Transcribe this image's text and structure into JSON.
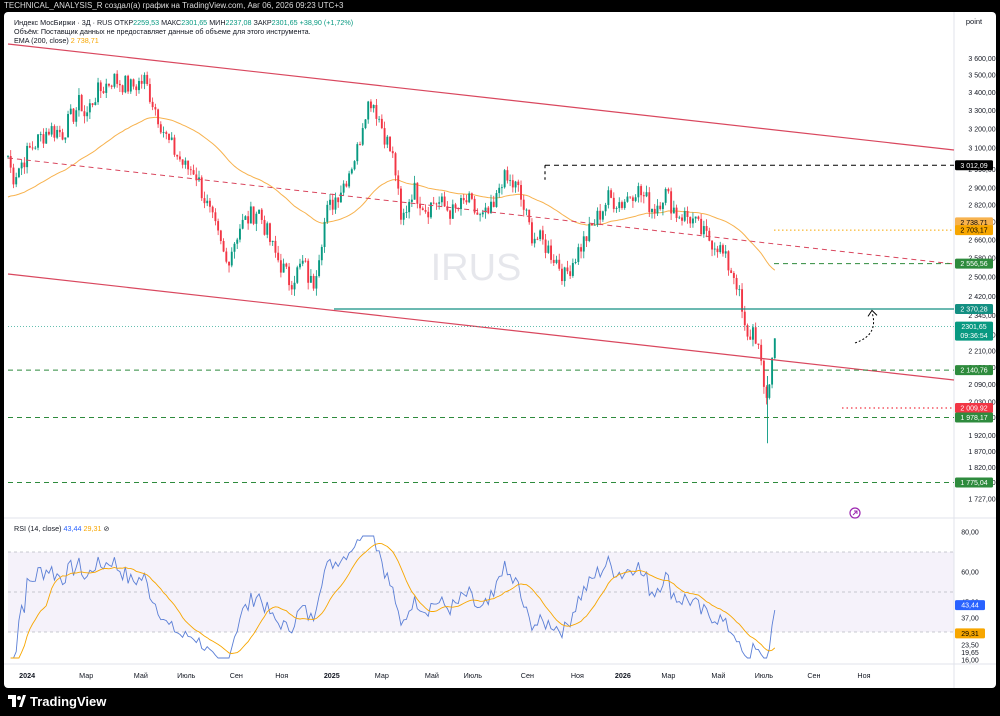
{
  "caption": "TECHNICAL_ANALYSIS_R создал(а) график на TradingView.com, Авг 06, 2026 09:23 UTC+3",
  "brand": "TradingView",
  "watermark": "IRUS",
  "scale_label": "point",
  "legend": {
    "symbol": "Индекс МосБиржи · 3Д · RUS",
    "o_label": "ОТКР",
    "o": "2259,53",
    "h_label": "МАКС",
    "h": "2301,65",
    "l_label": "МИН",
    "l": "2237,08",
    "c_label": "ЗАКР",
    "c": "2301,65",
    "change": "+38,90 (+1,72%)",
    "volume_note": "Объём: Поставщик данных не предоставляет данные об объеме для этого инструмента.",
    "ema_label": "EMA (200, close)",
    "ema_value": "2 738,71",
    "rsi_label": "RSI (14, close)",
    "rsi_value": "43,44",
    "rsi_ma_value": "29,31"
  },
  "colors": {
    "up": "#089981",
    "down": "#f23645",
    "ema": "#f7b24e",
    "rsi": "#5b7fd6",
    "rsi_ma": "#f7a600",
    "channel": "#d9475e",
    "teal": "#138f82",
    "green_dash": "#2e8b3d",
    "black": "#000000"
  },
  "chart_data": [
    {
      "type": "candlestick",
      "title": "Индекс МосБиржи · 3Д · RUS",
      "x_ticks": [
        "2024",
        "Мар",
        "Май",
        "Июль",
        "Сен",
        "Ноя",
        "2025",
        "Мар",
        "Май",
        "Июль",
        "Сен",
        "Ноя",
        "2026",
        "Мар",
        "Май",
        "Июль",
        "Сен",
        "Ноя"
      ],
      "y_ticks": [
        3600,
        3500,
        3400,
        3300,
        3200,
        3100,
        2990,
        2900,
        2820,
        2740,
        2660,
        2580,
        2500,
        2420,
        2345,
        2270,
        2210,
        2150,
        2090,
        2030,
        1978,
        1920,
        1870,
        1820,
        1775,
        1727
      ],
      "y_tick_labels": [
        "3 600,00",
        "3 500,00",
        "3 400,00",
        "3 300,00",
        "3 200,00",
        "3 100,00",
        "2 990,00",
        "2 900,00",
        "2 820,00",
        "2 740,00",
        "2 660,00",
        "2 580,00",
        "2 500,00",
        "2 420,00",
        "2 345,00",
        "2 270,00",
        "2 210,00",
        "2 150,00",
        "2 090,00",
        "2 030,00",
        "1 978,00",
        "1 920,00",
        "1 870,00",
        "1 820,00",
        "1 775,00",
        "1 727,00"
      ],
      "ylim": [
        1690,
        3650
      ],
      "y_scale": "log",
      "path_x_day": [
        0,
        5,
        25,
        45,
        60,
        80,
        85,
        95,
        115,
        135,
        150,
        175,
        195,
        205,
        220,
        240,
        255,
        275,
        292,
        310,
        325,
        330,
        335,
        350,
        370,
        385,
        392,
        400,
        412,
        425,
        432,
        445,
        460,
        470,
        490,
        505,
        520,
        535,
        542,
        560,
        575,
        590,
        605,
        612,
        625,
        640,
        660,
        675,
        690,
        710,
        722,
        735,
        750,
        765,
        780,
        790,
        800,
        807,
        812,
        820,
        826,
        830,
        835,
        840,
        845
      ],
      "path_close": [
        3060,
        2950,
        3100,
        3200,
        3180,
        3350,
        3260,
        3380,
        3480,
        3430,
        3470,
        3140,
        3000,
        2990,
        2800,
        2560,
        2720,
        2800,
        2610,
        2480,
        2560,
        2500,
        2460,
        2780,
        2930,
        3100,
        3300,
        3370,
        3200,
        3020,
        2730,
        2900,
        2800,
        2840,
        2780,
        2840,
        2750,
        2800,
        2950,
        2900,
        2690,
        2640,
        2560,
        2500,
        2600,
        2700,
        2850,
        2830,
        2900,
        2800,
        2880,
        2780,
        2760,
        2680,
        2640,
        2560,
        2500,
        2350,
        2240,
        2300,
        2200,
        2080,
        2050,
        2180,
        2300
      ],
      "last_close": "2301,65",
      "countdown": "09:36:54",
      "price_labels": [
        "3 012,09",
        "2 738,71",
        "2 703,17",
        "2 556,56",
        "2 370,28",
        "2 140,76",
        "2 009,92",
        "1 978,17",
        "1 775,04"
      ],
      "series": [
        {
          "name": "EMA (200, close)",
          "last": 2738.71
        }
      ]
    },
    {
      "type": "line",
      "title": "RSI (14, close)",
      "y_ticks": [
        80,
        60,
        45,
        37,
        30,
        23.5,
        19.65,
        16
      ],
      "y_tick_labels": [
        "80,00",
        "60,00",
        "45,00",
        "37,00",
        "30,00",
        "23,50",
        "19,65",
        "16,00"
      ],
      "ylim": [
        16,
        80
      ],
      "levels": [
        70,
        50,
        30
      ],
      "series": [
        {
          "name": "RSI (14, close)",
          "last": 43.44
        },
        {
          "name": "RSI MA",
          "last": 29.31
        }
      ]
    }
  ]
}
